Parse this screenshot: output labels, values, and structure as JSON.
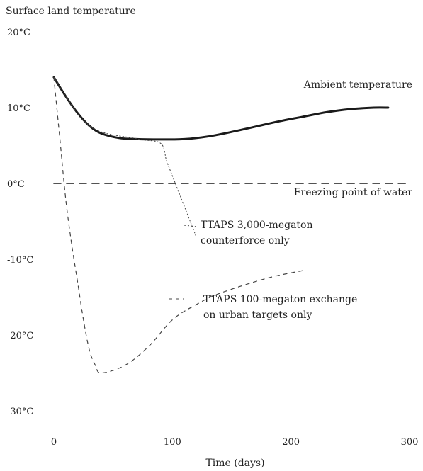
{
  "chart_data": {
    "type": "line",
    "title": "Surface land temperature",
    "xlabel": "Time (days)",
    "ylabel": "",
    "xlim": [
      0,
      300
    ],
    "ylim": [
      -30,
      20
    ],
    "x_ticks": [
      {
        "value": 0,
        "label": "0"
      },
      {
        "value": 100,
        "label": "100"
      },
      {
        "value": 200,
        "label": "200"
      },
      {
        "value": 300,
        "label": "300"
      }
    ],
    "y_ticks": [
      {
        "value": 20,
        "label": "20°C"
      },
      {
        "value": 10,
        "label": "10°C"
      },
      {
        "value": 0,
        "label": "0°C"
      },
      {
        "value": -10,
        "label": "-10°C"
      },
      {
        "value": -20,
        "label": "-20°C"
      },
      {
        "value": -30,
        "label": "-30°C"
      }
    ],
    "series": [
      {
        "name": "Ambient temperature",
        "style": "solid",
        "points": [
          [
            0,
            14
          ],
          [
            10,
            11.5
          ],
          [
            20,
            9.3
          ],
          [
            30,
            7.6
          ],
          [
            40,
            6.6
          ],
          [
            55,
            6
          ],
          [
            70,
            5.85
          ],
          [
            90,
            5.8
          ],
          [
            110,
            5.85
          ],
          [
            130,
            6.2
          ],
          [
            150,
            6.8
          ],
          [
            170,
            7.5
          ],
          [
            190,
            8.2
          ],
          [
            210,
            8.8
          ],
          [
            230,
            9.4
          ],
          [
            250,
            9.8
          ],
          [
            270,
            10
          ],
          [
            282,
            10
          ]
        ]
      },
      {
        "name": "TTAPS 3,000-megaton counterforce only",
        "style": "dotted",
        "points": [
          [
            0,
            14
          ],
          [
            30,
            7.6
          ],
          [
            70,
            5.9
          ],
          [
            90,
            5.3
          ],
          [
            95,
            3
          ],
          [
            100,
            1
          ],
          [
            105,
            -1
          ],
          [
            110,
            -3
          ],
          [
            115,
            -5
          ],
          [
            120,
            -7
          ]
        ]
      },
      {
        "name": "TTAPS 100-megaton exchange on urban targets only",
        "style": "dashed",
        "points": [
          [
            0,
            14
          ],
          [
            5,
            6
          ],
          [
            10,
            -2
          ],
          [
            15,
            -8
          ],
          [
            20,
            -13
          ],
          [
            25,
            -18
          ],
          [
            30,
            -22
          ],
          [
            35,
            -24
          ],
          [
            40,
            -25
          ],
          [
            60,
            -24
          ],
          [
            80,
            -21.5
          ],
          [
            100,
            -18
          ],
          [
            120,
            -16
          ],
          [
            140,
            -14.5
          ],
          [
            180,
            -12.5
          ],
          [
            210,
            -11.5
          ]
        ]
      },
      {
        "name": "Freezing point of water",
        "style": "dashed-reference",
        "points": [
          [
            0,
            0
          ],
          [
            300,
            0
          ]
        ]
      }
    ],
    "annotations": [
      {
        "text": "Ambient temperature",
        "series": 0
      },
      {
        "text": "Freezing point of water",
        "series": 3
      },
      {
        "text": "TTAPS 3,000-megaton counterforce only",
        "series": 1
      },
      {
        "text": "TTAPS 100-megaton exchange on urban targets only",
        "series": 2
      }
    ],
    "labels": {
      "ambient": "Ambient temperature",
      "freezing": "Freezing point of water",
      "cf_line1": "TTAPS 3,000-megaton",
      "cf_line2": "counterforce only",
      "urban_line1": "TTAPS 100-megaton exchange",
      "urban_line2": "on urban targets only"
    },
    "grid": false,
    "legend": "inline annotations"
  },
  "colors": {
    "ink": "#1a1a1a",
    "faint": "#444444",
    "background": "#ffffff"
  }
}
